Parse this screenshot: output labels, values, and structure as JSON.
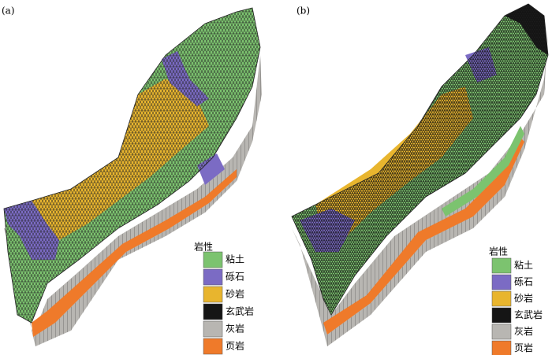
{
  "panels": [
    {
      "label": "(a)",
      "legend_title": "岩性",
      "legend": [
        {
          "name": "粘土",
          "color": "#7cc36f"
        },
        {
          "name": "砾石",
          "color": "#7b6bc4"
        },
        {
          "name": "砂岩",
          "color": "#e8b52e"
        },
        {
          "name": "玄武岩",
          "color": "#151515"
        },
        {
          "name": "灰岩",
          "color": "#b8b6b2"
        },
        {
          "name": "页岩",
          "color": "#ef7a2a"
        }
      ]
    },
    {
      "label": "(b)",
      "legend_title": "岩性",
      "legend": [
        {
          "name": "粘土",
          "color": "#7cc36f"
        },
        {
          "name": "砾石",
          "color": "#7b6bc4"
        },
        {
          "name": "砂岩",
          "color": "#e8b52e"
        },
        {
          "name": "玄武岩",
          "color": "#151515"
        },
        {
          "name": "灰岩",
          "color": "#b8b6b2"
        },
        {
          "name": "页岩",
          "color": "#ef7a2a"
        }
      ]
    }
  ]
}
